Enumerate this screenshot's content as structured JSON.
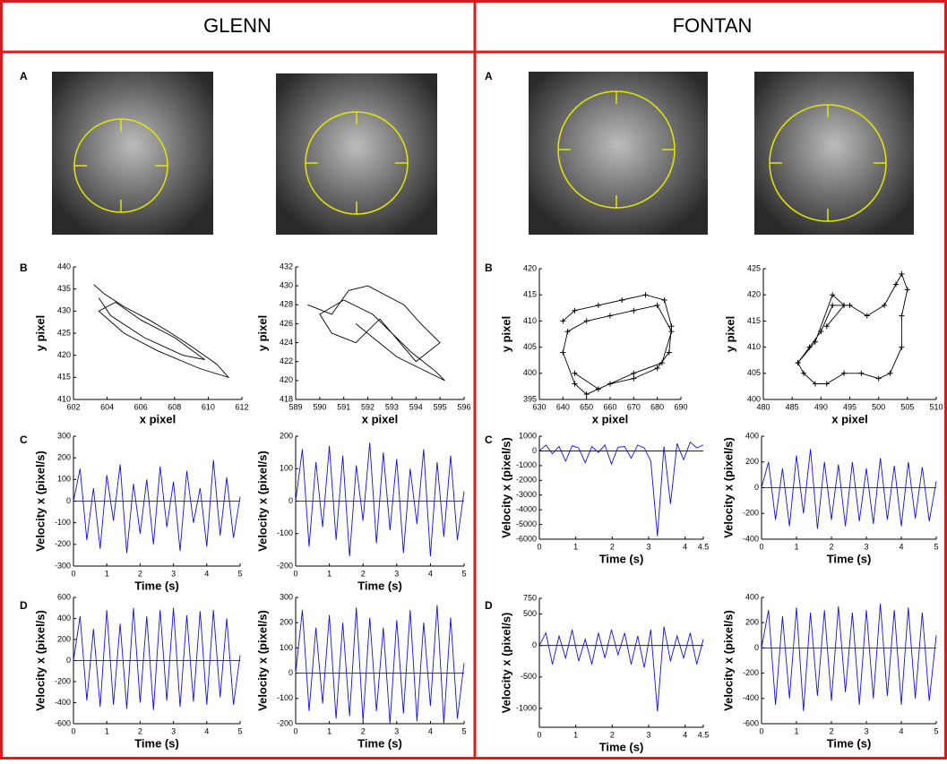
{
  "columns": [
    {
      "title": "GLENN",
      "labels": [
        "A",
        "B",
        "C",
        "D"
      ]
    },
    {
      "title": "FONTAN",
      "labels": [
        "A",
        "B",
        "C",
        "D"
      ]
    }
  ],
  "chart_data": [
    {
      "type": "line",
      "x_label": "x pixel",
      "y_label": "y pixel",
      "xlim": [
        602,
        612
      ],
      "ylim": [
        410,
        440
      ],
      "xticks": [
        602,
        604,
        606,
        608,
        610,
        612
      ],
      "yticks": [
        410,
        415,
        420,
        425,
        430,
        435,
        440
      ],
      "color": "#000000",
      "marker": "none",
      "x": [
        603.2,
        603.8,
        605,
        606.5,
        607.8,
        609,
        610.5,
        611.2,
        609.5,
        607,
        605,
        603.5,
        604.5,
        606,
        608,
        609.8,
        608.5,
        606.2,
        604.2,
        603.5
      ],
      "values": [
        436,
        434,
        431,
        428,
        425,
        422,
        418,
        415,
        417,
        421,
        425,
        430,
        432,
        428,
        424,
        419,
        420,
        424,
        429,
        433
      ]
    },
    {
      "type": "line",
      "x_label": "x pixel",
      "y_label": "y pixel",
      "xlim": [
        589,
        596
      ],
      "ylim": [
        418,
        432
      ],
      "xticks": [
        589,
        590,
        591,
        592,
        593,
        594,
        595,
        596
      ],
      "yticks": [
        418,
        420,
        422,
        424,
        426,
        428,
        430,
        432
      ],
      "color": "#000000",
      "marker": "none",
      "x": [
        589.5,
        590.5,
        591.2,
        592,
        593.5,
        594.2,
        595,
        594,
        593,
        592.5,
        591.5,
        590.5,
        590,
        591,
        592.2,
        593.8,
        594.8,
        595.2,
        593.2,
        591.5
      ],
      "values": [
        428,
        427,
        429.5,
        430,
        428,
        426,
        424,
        422,
        425,
        426.5,
        424,
        425,
        427,
        428.5,
        427,
        423,
        421,
        420,
        422.5,
        426
      ]
    },
    {
      "type": "line",
      "x_label": "Time (s)",
      "y_label": "Velocity x (pixel/s)",
      "xlim": [
        0,
        5
      ],
      "ylim": [
        -300,
        300
      ],
      "xticks": [
        0,
        1,
        2,
        3,
        4,
        5
      ],
      "yticks": [
        -300,
        -200,
        -100,
        0,
        100,
        200,
        300
      ],
      "color": "#1010e0",
      "marker": "none",
      "zero_line": true,
      "x": [
        0,
        0.2,
        0.4,
        0.6,
        0.8,
        1,
        1.2,
        1.4,
        1.6,
        1.8,
        2,
        2.2,
        2.4,
        2.6,
        2.8,
        3,
        3.2,
        3.4,
        3.6,
        3.8,
        4,
        4.2,
        4.4,
        4.6,
        4.8,
        5
      ],
      "values": [
        0,
        150,
        -180,
        60,
        -220,
        120,
        -90,
        170,
        -240,
        80,
        -150,
        100,
        -200,
        160,
        -120,
        90,
        -230,
        140,
        -100,
        60,
        -210,
        190,
        -160,
        110,
        -170,
        20
      ]
    },
    {
      "type": "line",
      "x_label": "Time (s)",
      "y_label": "Velocity x (pixel/s)",
      "xlim": [
        0,
        5
      ],
      "ylim": [
        -200,
        200
      ],
      "xticks": [
        0,
        1,
        2,
        3,
        4,
        5
      ],
      "yticks": [
        -200,
        -100,
        0,
        100,
        200
      ],
      "color": "#1010e0",
      "marker": "none",
      "zero_line": true,
      "x": [
        0,
        0.2,
        0.4,
        0.6,
        0.8,
        1,
        1.2,
        1.4,
        1.6,
        1.8,
        2,
        2.2,
        2.4,
        2.6,
        2.8,
        3,
        3.2,
        3.4,
        3.6,
        3.8,
        4,
        4.2,
        4.4,
        4.6,
        4.8,
        5
      ],
      "values": [
        0,
        160,
        -140,
        120,
        -80,
        170,
        -120,
        140,
        -170,
        110,
        -60,
        180,
        -130,
        150,
        -90,
        130,
        -160,
        100,
        -70,
        160,
        -170,
        120,
        -110,
        140,
        -120,
        30
      ]
    },
    {
      "type": "line",
      "x_label": "Time (s)",
      "y_label": "Velocity x (pixel/s)",
      "xlim": [
        0,
        5
      ],
      "ylim": [
        -600,
        600
      ],
      "xticks": [
        0,
        1,
        2,
        3,
        4,
        5
      ],
      "yticks": [
        -600,
        -400,
        -200,
        0,
        200,
        400,
        600
      ],
      "color": "#1010e0",
      "marker": "none",
      "zero_line": true,
      "x": [
        0,
        0.2,
        0.4,
        0.6,
        0.8,
        1,
        1.2,
        1.4,
        1.6,
        1.8,
        2,
        2.2,
        2.4,
        2.6,
        2.8,
        3,
        3.2,
        3.4,
        3.6,
        3.8,
        4,
        4.2,
        4.4,
        4.6,
        4.8,
        5
      ],
      "values": [
        0,
        420,
        -380,
        300,
        -440,
        480,
        -420,
        350,
        -460,
        500,
        -400,
        420,
        -470,
        480,
        -380,
        500,
        -440,
        430,
        -390,
        470,
        -420,
        480,
        -350,
        400,
        -420,
        50
      ]
    },
    {
      "type": "line",
      "x_label": "Time (s)",
      "y_label": "Velocity x (pixel/s)",
      "xlim": [
        0,
        5
      ],
      "ylim": [
        -200,
        300
      ],
      "xticks": [
        0,
        1,
        2,
        3,
        4,
        5
      ],
      "yticks": [
        -200,
        -100,
        0,
        100,
        200,
        300
      ],
      "color": "#1010e0",
      "marker": "none",
      "zero_line": true,
      "x": [
        0,
        0.2,
        0.4,
        0.6,
        0.8,
        1,
        1.2,
        1.4,
        1.6,
        1.8,
        2,
        2.2,
        2.4,
        2.6,
        2.8,
        3,
        3.2,
        3.4,
        3.6,
        3.8,
        4,
        4.2,
        4.4,
        4.6,
        4.8,
        5
      ],
      "values": [
        0,
        250,
        -150,
        180,
        -120,
        230,
        -180,
        200,
        -170,
        260,
        -190,
        220,
        -150,
        180,
        -200,
        210,
        -160,
        250,
        -190,
        200,
        -130,
        270,
        -200,
        220,
        -180,
        40
      ]
    },
    {
      "type": "line",
      "x_label": "x pixel",
      "y_label": "y pixel",
      "xlim": [
        630,
        690
      ],
      "ylim": [
        395,
        420
      ],
      "xticks": [
        630,
        640,
        650,
        660,
        670,
        680,
        690
      ],
      "yticks": [
        395,
        400,
        405,
        410,
        415,
        420
      ],
      "color": "#000000",
      "marker": "plus",
      "x": [
        640,
        645,
        655,
        665,
        675,
        683,
        686,
        685,
        680,
        670,
        660,
        650,
        645,
        640,
        642,
        650,
        660,
        670,
        680,
        686,
        682,
        670,
        655,
        645
      ],
      "values": [
        410,
        412,
        413,
        414,
        415,
        414,
        409,
        404,
        401,
        399,
        398,
        396,
        398,
        404,
        408,
        410,
        411,
        412,
        413,
        408,
        402,
        400,
        397,
        400
      ]
    },
    {
      "type": "line",
      "x_label": "x pixel",
      "y_label": "y pixel",
      "xlim": [
        480,
        510
      ],
      "ylim": [
        400,
        425
      ],
      "xticks": [
        480,
        485,
        490,
        495,
        500,
        505,
        510
      ],
      "yticks": [
        400,
        405,
        410,
        415,
        420,
        425
      ],
      "color": "#000000",
      "marker": "plus",
      "x": [
        486,
        488,
        490,
        492,
        495,
        498,
        501,
        503,
        504,
        505,
        504,
        504,
        502,
        500,
        497,
        494,
        491,
        489,
        487,
        486,
        489,
        492,
        494,
        491
      ],
      "values": [
        407,
        410,
        413,
        418,
        418,
        416,
        418,
        422,
        424,
        421,
        416,
        410,
        405,
        404,
        405,
        405,
        403,
        403,
        405,
        407,
        411,
        420,
        418,
        414
      ]
    },
    {
      "type": "line",
      "x_label": "Time (s)",
      "y_label": "Velocity x (pixel/s)",
      "xlim": [
        0,
        4.5
      ],
      "ylim": [
        -6000,
        1000
      ],
      "xticks": [
        0,
        1,
        2,
        3,
        4,
        4.5
      ],
      "yticks": [
        -6000,
        -5000,
        -4000,
        -3000,
        -2000,
        -1000,
        0,
        1000
      ],
      "color": "#1010e0",
      "marker": "none",
      "zero_line": true,
      "x": [
        0,
        0.18,
        0.36,
        0.54,
        0.72,
        0.9,
        1.08,
        1.26,
        1.44,
        1.62,
        1.8,
        1.98,
        2.16,
        2.34,
        2.52,
        2.7,
        2.88,
        3.06,
        3.24,
        3.42,
        3.6,
        3.78,
        3.96,
        4.14,
        4.32,
        4.5
      ],
      "values": [
        0,
        400,
        -200,
        300,
        -700,
        350,
        200,
        -800,
        300,
        -100,
        400,
        -900,
        250,
        300,
        -500,
        400,
        200,
        -700,
        -5800,
        300,
        -3600,
        500,
        -600,
        600,
        200,
        400
      ]
    },
    {
      "type": "line",
      "x_label": "Time (s)",
      "y_label": "Velocity x (pixel/s)",
      "xlim": [
        0,
        5
      ],
      "ylim": [
        -400,
        400
      ],
      "xticks": [
        0,
        1,
        2,
        3,
        4,
        5
      ],
      "yticks": [
        -400,
        -200,
        0,
        200,
        400
      ],
      "color": "#1010e0",
      "marker": "none",
      "zero_line": true,
      "x": [
        0,
        0.2,
        0.4,
        0.6,
        0.8,
        1,
        1.2,
        1.4,
        1.6,
        1.8,
        2,
        2.2,
        2.4,
        2.6,
        2.8,
        3,
        3.2,
        3.4,
        3.6,
        3.8,
        4,
        4.2,
        4.4,
        4.6,
        4.8,
        5
      ],
      "values": [
        0,
        200,
        -250,
        150,
        -300,
        250,
        -200,
        300,
        -320,
        200,
        -250,
        180,
        -300,
        200,
        -260,
        150,
        -280,
        230,
        -250,
        170,
        -300,
        200,
        -240,
        160,
        -260,
        50
      ]
    },
    {
      "type": "line",
      "x_label": "Time (s)",
      "y_label": "Velocity x (pixel/s)",
      "xlim": [
        0,
        4.5
      ],
      "ylim": [
        -1300,
        750
      ],
      "xticks": [
        0,
        1,
        2,
        3,
        4,
        4.5
      ],
      "yticks": [
        -1000,
        -500,
        0,
        500,
        750
      ],
      "color": "#1010e0",
      "marker": "none",
      "zero_line": true,
      "x": [
        0,
        0.18,
        0.36,
        0.54,
        0.72,
        0.9,
        1.08,
        1.26,
        1.44,
        1.62,
        1.8,
        1.98,
        2.16,
        2.34,
        2.52,
        2.7,
        2.88,
        3.06,
        3.24,
        3.42,
        3.6,
        3.78,
        3.96,
        4.14,
        4.32,
        4.5
      ],
      "values": [
        0,
        200,
        -300,
        150,
        -200,
        250,
        -250,
        100,
        -300,
        200,
        -200,
        250,
        -150,
        200,
        -300,
        150,
        -350,
        250,
        -1050,
        300,
        -250,
        150,
        -200,
        200,
        -300,
        100
      ]
    },
    {
      "type": "line",
      "x_label": "Time (s)",
      "y_label": "Velocity x (pixel/s)",
      "xlim": [
        0,
        5
      ],
      "ylim": [
        -600,
        400
      ],
      "xticks": [
        0,
        1,
        2,
        3,
        4,
        5
      ],
      "yticks": [
        -600,
        -400,
        -200,
        0,
        200,
        400
      ],
      "color": "#1010e0",
      "marker": "none",
      "zero_line": true,
      "x": [
        0,
        0.2,
        0.4,
        0.6,
        0.8,
        1,
        1.2,
        1.4,
        1.6,
        1.8,
        2,
        2.2,
        2.4,
        2.6,
        2.8,
        3,
        3.2,
        3.4,
        3.6,
        3.8,
        4,
        4.2,
        4.4,
        4.6,
        4.8,
        5
      ],
      "values": [
        0,
        300,
        -450,
        250,
        -400,
        320,
        -500,
        280,
        -380,
        300,
        -420,
        330,
        -350,
        280,
        -450,
        300,
        -400,
        350,
        -380,
        300,
        -450,
        320,
        -400,
        280,
        -420,
        100
      ]
    }
  ]
}
